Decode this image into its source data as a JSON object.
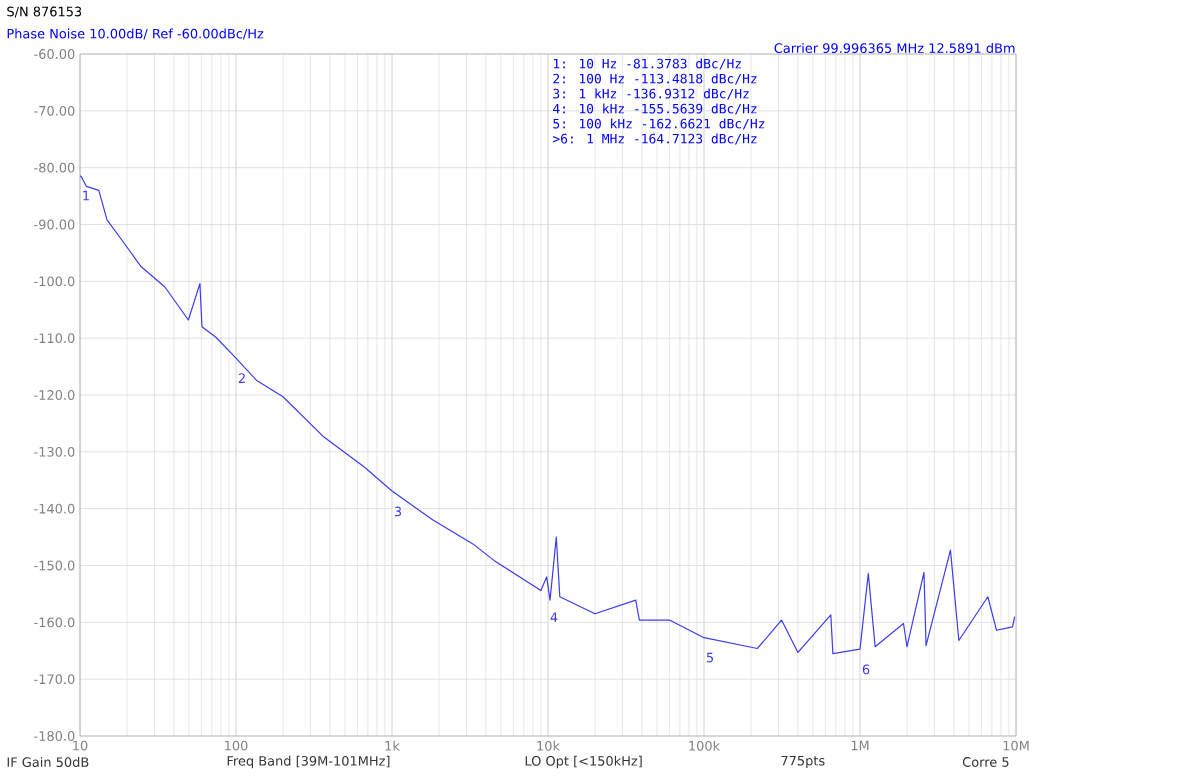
{
  "chart_data": {
    "type": "line",
    "title": "Phase Noise 10.00dB/ Ref -60.00dBc/Hz",
    "subtitle": "S/N 876153",
    "x": [
      10,
      10.2,
      11,
      13.2,
      14.9,
      19.2,
      24.6,
      35,
      49.5,
      58.7,
      60.5,
      74,
      100,
      135,
      200,
      366,
      667,
      1000,
      1830,
      3300,
      4500,
      9000,
      9800,
      10300,
      11300,
      11900,
      20000,
      36500,
      38500,
      60000,
      100000,
      220000,
      314000,
      400000,
      650000,
      670000,
      1000000,
      1130000,
      1250000,
      1900000,
      2000000,
      2570000,
      2650000,
      3800000,
      4300000,
      6600000,
      7500000,
      9500000,
      9800000
    ],
    "series": [
      {
        "color": "#3b3bf0",
        "values": [
          -81.4,
          -81.6,
          -83.3,
          -84,
          -89.2,
          -93.3,
          -97.4,
          -101,
          -106.8,
          -100.4,
          -108,
          -109.8,
          -113.5,
          -117.4,
          -120.3,
          -127.4,
          -132.7,
          -136.9,
          -142,
          -146.2,
          -149.1,
          -154.4,
          -152,
          -156.1,
          -145,
          -155.5,
          -158.5,
          -156.1,
          -159.6,
          -159.6,
          -162.7,
          -164.6,
          -159.6,
          -165.3,
          -158.7,
          -165.5,
          -164.7,
          -151.4,
          -164.3,
          -160.2,
          -164.3,
          -151.2,
          -164.1,
          -147.3,
          -163.2,
          -155.5,
          -161.4,
          -160.8,
          -159
        ]
      }
    ],
    "log": "x",
    "xlim": [
      10,
      10000000
    ],
    "xticks": [
      {
        "value": 10,
        "label": "10"
      },
      {
        "value": 100,
        "label": "100"
      },
      {
        "value": 1000,
        "label": "1k"
      },
      {
        "value": 10000,
        "label": "10k"
      },
      {
        "value": 100000,
        "label": "100k"
      },
      {
        "value": 1000000,
        "label": "1M"
      },
      {
        "value": 10000000,
        "label": "10M"
      }
    ],
    "ylim": [
      -180,
      -60
    ],
    "yticks": [
      {
        "value": -60,
        "label": "-60.00"
      },
      {
        "value": -70,
        "label": "-70.00"
      },
      {
        "value": -80,
        "label": "-80.00"
      },
      {
        "value": -90,
        "label": "-90.00"
      },
      {
        "value": -100,
        "label": "-100.0"
      },
      {
        "value": -110,
        "label": "-110.0"
      },
      {
        "value": -120,
        "label": "-120.0"
      },
      {
        "value": -130,
        "label": "-130.0"
      },
      {
        "value": -140,
        "label": "-140.0"
      },
      {
        "value": -150,
        "label": "-150.0"
      },
      {
        "value": -160,
        "label": "-160.0"
      },
      {
        "value": -170,
        "label": "-170.0"
      },
      {
        "value": -180,
        "label": "-180.0"
      }
    ],
    "grid": true,
    "annotations": [
      "Carrier 99.996365 MHz 12.5891 dBm",
      "1: 10 Hz -81.3783 dBc/Hz",
      "2: 100 Hz -113.4818 dBc/Hz",
      "3: 1 kHz -136.9312 dBc/Hz",
      "4: 10 kHz -155.5639 dBc/Hz",
      "5: 100 kHz -162.6621 dBc/Hz",
      ">6: 1 MHz -164.7123 dBc/Hz",
      "IF Gain 50dB",
      "Freq Band [39M-101MHz]",
      "LO Opt [<150kHz]",
      "775pts",
      "Corre 5",
      {
        "text": "1",
        "x": 10,
        "y": -81.3783
      },
      {
        "text": "2",
        "x": 100,
        "y": -113.4818
      },
      {
        "text": "3",
        "x": 1000,
        "y": -136.9312
      },
      {
        "text": "4",
        "x": 10000,
        "y": -155.5639
      },
      {
        "text": "5",
        "x": 100000,
        "y": -162.6621
      },
      {
        "text": "6",
        "x": 1000000,
        "y": -164.7123
      }
    ]
  }
}
